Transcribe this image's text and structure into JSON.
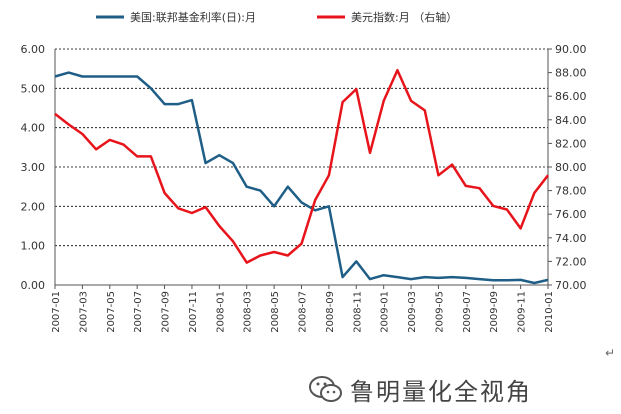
{
  "chart_data": {
    "type": "line",
    "x": [
      "2007-01",
      "2007-02",
      "2007-03",
      "2007-04",
      "2007-05",
      "2007-06",
      "2007-07",
      "2007-08",
      "2007-09",
      "2007-10",
      "2007-11",
      "2007-12",
      "2008-01",
      "2008-02",
      "2008-03",
      "2008-04",
      "2008-05",
      "2008-06",
      "2008-07",
      "2008-08",
      "2008-09",
      "2008-10",
      "2008-11",
      "2008-12",
      "2009-01",
      "2009-02",
      "2009-03",
      "2009-04",
      "2009-05",
      "2009-06",
      "2009-07",
      "2009-08",
      "2009-09",
      "2009-10",
      "2009-11",
      "2009-12",
      "2010-01"
    ],
    "xtick_labels": [
      "2007-01",
      "2007-03",
      "2007-05",
      "2007-07",
      "2007-09",
      "2007-11",
      "2008-01",
      "2008-03",
      "2008-05",
      "2008-07",
      "2008-09",
      "2008-11",
      "2009-01",
      "2009-03",
      "2009-05",
      "2009-07",
      "2009-09",
      "2009-11",
      "2010-01"
    ],
    "series": [
      {
        "name": "美国:联邦基金利率(日):月",
        "axis": "left",
        "color": "#1f5e86",
        "values": [
          5.3,
          5.4,
          5.3,
          5.3,
          5.3,
          5.3,
          5.3,
          5.0,
          4.6,
          4.6,
          4.7,
          3.1,
          3.3,
          3.1,
          2.5,
          2.4,
          2.0,
          2.5,
          2.1,
          1.9,
          2.0,
          0.2,
          0.6,
          0.15,
          0.25,
          0.2,
          0.15,
          0.2,
          0.18,
          0.2,
          0.18,
          0.15,
          0.12,
          0.12,
          0.13,
          0.05,
          0.13
        ]
      },
      {
        "name": "美元指数:月 （右轴）",
        "axis": "right",
        "color": "#e8141b",
        "values": [
          84.5,
          83.6,
          82.8,
          81.5,
          82.3,
          81.9,
          80.9,
          80.9,
          77.8,
          76.5,
          76.1,
          76.6,
          75.0,
          73.7,
          71.9,
          72.5,
          72.8,
          72.5,
          73.5,
          77.2,
          79.3,
          85.5,
          86.6,
          81.2,
          85.6,
          88.2,
          85.6,
          84.8,
          79.3,
          80.2,
          78.4,
          78.2,
          76.7,
          76.4,
          74.8,
          77.8,
          79.3
        ]
      }
    ],
    "y_left": {
      "ticks": [
        "0.00",
        "1.00",
        "2.00",
        "3.00",
        "4.00",
        "5.00",
        "6.00"
      ],
      "ylim": [
        0,
        6
      ]
    },
    "y_right": {
      "ticks": [
        "70.00",
        "72.00",
        "74.00",
        "76.00",
        "78.00",
        "80.00",
        "82.00",
        "84.00",
        "86.00",
        "88.00",
        "90.00"
      ],
      "ylim": [
        70,
        90
      ]
    },
    "grid": true,
    "legend_position": "top"
  },
  "watermark": {
    "text": "鲁明量化全视角",
    "icon": "wechat-icon"
  },
  "stray_mark": "↵"
}
